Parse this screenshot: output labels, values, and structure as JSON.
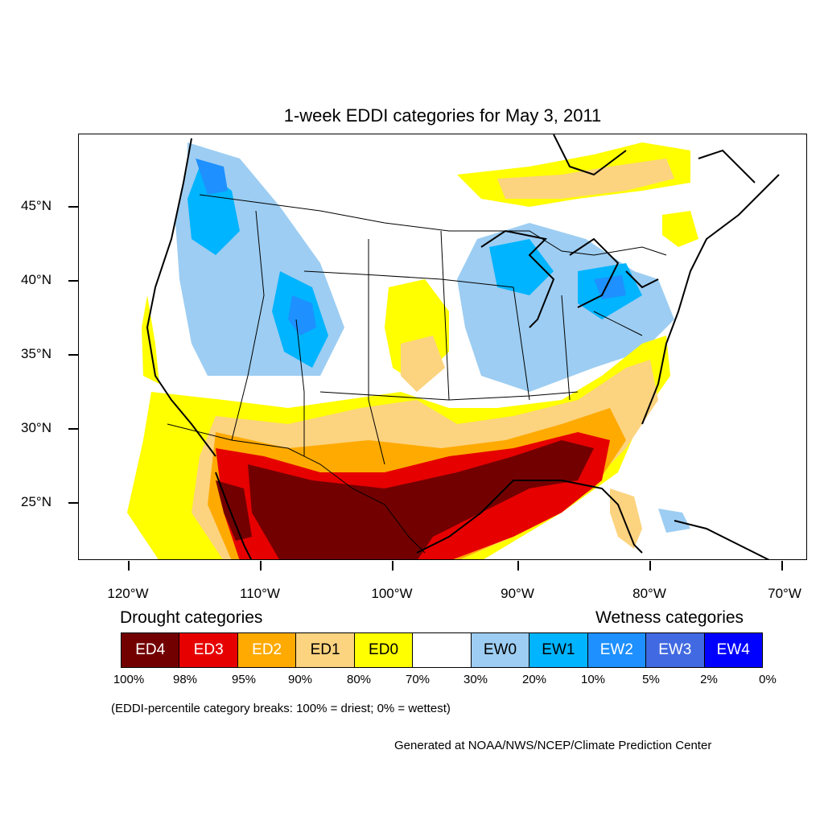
{
  "title": "1-week EDDI categories for May 3, 2011",
  "latitude_labels": [
    "45°N",
    "40°N",
    "35°N",
    "30°N",
    "25°N"
  ],
  "longitude_labels": [
    "120°W",
    "110°W",
    "100°W",
    "90°W",
    "80°W",
    "70°W"
  ],
  "legend": {
    "drought_heading": "Drought categories",
    "wetness_heading": "Wetness categories",
    "categories": [
      {
        "label": "ED4",
        "color": "#730000",
        "text_color": "#ffffff"
      },
      {
        "label": "ED3",
        "color": "#e60000",
        "text_color": "#ffffff"
      },
      {
        "label": "ED2",
        "color": "#ffaa00",
        "text_color": "#ffffff"
      },
      {
        "label": "ED1",
        "color": "#fcd37f",
        "text_color": "#000000"
      },
      {
        "label": "ED0",
        "color": "#ffff00",
        "text_color": "#000000"
      },
      {
        "label": "",
        "color": "#ffffff",
        "text_color": "#000000"
      },
      {
        "label": "EW0",
        "color": "#9dcdf2",
        "text_color": "#000000"
      },
      {
        "label": "EW1",
        "color": "#00b4ff",
        "text_color": "#000000"
      },
      {
        "label": "EW2",
        "color": "#1e90ff",
        "text_color": "#ffffff"
      },
      {
        "label": "EW3",
        "color": "#4169e1",
        "text_color": "#ffffff"
      },
      {
        "label": "EW4",
        "color": "#0000ff",
        "text_color": "#ffffff"
      }
    ],
    "breaks": [
      "100%",
      "98%",
      "95%",
      "90%",
      "80%",
      "70%",
      "30%",
      "20%",
      "10%",
      "5%",
      "2%",
      "0%"
    ]
  },
  "note": "(EDDI-percentile category breaks: 100% = driest; 0% = wettest)",
  "credit": "Generated at NOAA/NWS/NCEP/Climate Prediction Center"
}
